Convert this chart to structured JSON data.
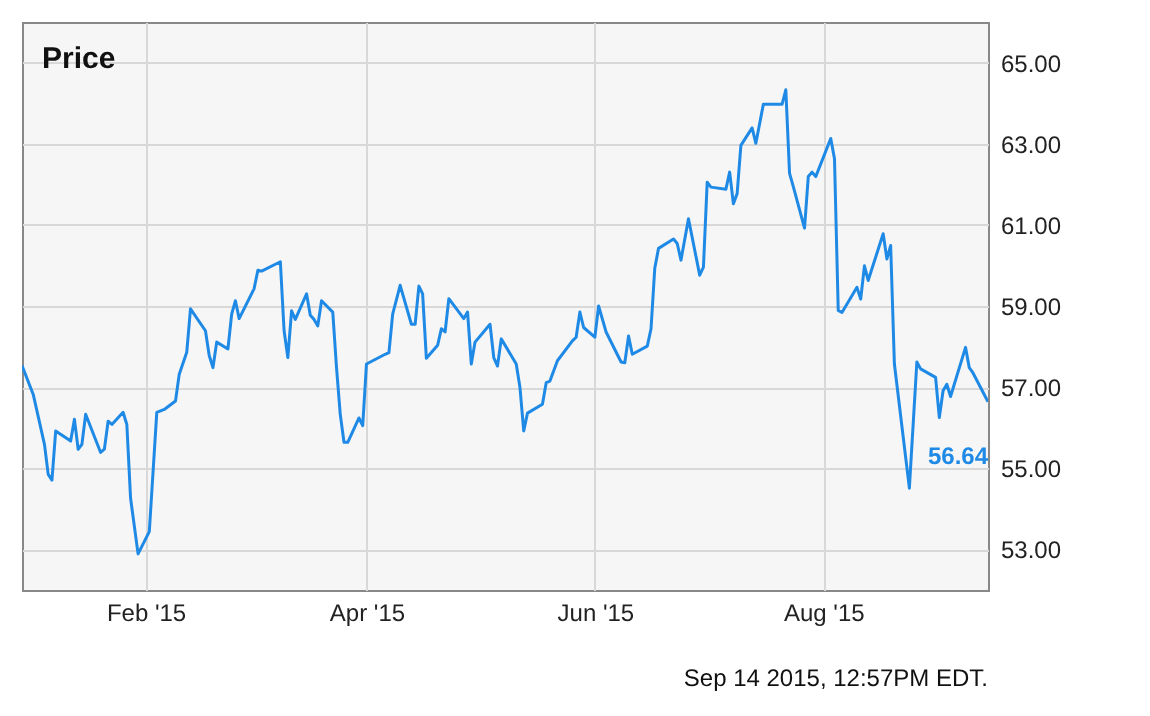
{
  "chart_data": {
    "type": "line",
    "title": "Price",
    "annotations": [
      "Sep 14 2015, 12:57PM EDT.",
      {
        "text": "56.64",
        "x": "2015-09-14",
        "y": 56.64
      }
    ],
    "x": [
      "2014-12-30",
      "2015-01-02",
      "2015-01-05",
      "2015-01-06",
      "2015-01-07",
      "2015-01-08",
      "2015-01-12",
      "2015-01-13",
      "2015-01-14",
      "2015-01-15",
      "2015-01-16",
      "2015-01-20",
      "2015-01-21",
      "2015-01-22",
      "2015-01-23",
      "2015-01-26",
      "2015-01-27",
      "2015-01-28",
      "2015-01-30",
      "2015-02-02",
      "2015-02-04",
      "2015-02-06",
      "2015-02-09",
      "2015-02-10",
      "2015-02-12",
      "2015-02-13",
      "2015-02-17",
      "2015-02-18",
      "2015-02-19",
      "2015-02-20",
      "2015-02-23",
      "2015-02-24",
      "2015-02-25",
      "2015-02-26",
      "2015-03-02",
      "2015-03-03",
      "2015-03-04",
      "2015-03-09",
      "2015-03-10",
      "2015-03-11",
      "2015-03-12",
      "2015-03-13",
      "2015-03-16",
      "2015-03-17",
      "2015-03-18",
      "2015-03-19",
      "2015-03-20",
      "2015-03-23",
      "2015-03-24",
      "2015-03-25",
      "2015-03-26",
      "2015-03-27",
      "2015-03-30",
      "2015-03-31",
      "2015-04-01",
      "2015-04-06",
      "2015-04-07",
      "2015-04-08",
      "2015-04-10",
      "2015-04-13",
      "2015-04-14",
      "2015-04-15",
      "2015-04-16",
      "2015-04-17",
      "2015-04-20",
      "2015-04-21",
      "2015-04-22",
      "2015-04-23",
      "2015-04-27",
      "2015-04-28",
      "2015-04-29",
      "2015-04-30",
      "2015-05-04",
      "2015-05-05",
      "2015-05-06",
      "2015-05-07",
      "2015-05-11",
      "2015-05-12",
      "2015-05-13",
      "2015-05-14",
      "2015-05-18",
      "2015-05-19",
      "2015-05-20",
      "2015-05-22",
      "2015-05-26",
      "2015-05-27",
      "2015-05-28",
      "2015-05-29",
      "2015-06-01",
      "2015-06-02",
      "2015-06-04",
      "2015-06-08",
      "2015-06-09",
      "2015-06-10",
      "2015-06-11",
      "2015-06-15",
      "2015-06-16",
      "2015-06-17",
      "2015-06-18",
      "2015-06-22",
      "2015-06-23",
      "2015-06-24",
      "2015-06-26",
      "2015-06-29",
      "2015-06-30",
      "2015-07-01",
      "2015-07-02",
      "2015-07-06",
      "2015-07-07",
      "2015-07-08",
      "2015-07-09",
      "2015-07-10",
      "2015-07-13",
      "2015-07-14",
      "2015-07-16",
      "2015-07-21",
      "2015-07-22",
      "2015-07-23",
      "2015-07-24",
      "2015-07-27",
      "2015-07-28",
      "2015-07-29",
      "2015-07-30",
      "2015-08-03",
      "2015-08-04",
      "2015-08-05",
      "2015-08-06",
      "2015-08-10",
      "2015-08-11",
      "2015-08-12",
      "2015-08-13",
      "2015-08-17",
      "2015-08-18",
      "2015-08-19",
      "2015-08-20",
      "2015-08-24",
      "2015-08-26",
      "2015-08-27",
      "2015-08-31",
      "2015-09-01",
      "2015-09-02",
      "2015-09-03",
      "2015-09-04",
      "2015-09-08",
      "2015-09-09",
      "2015-09-10",
      "2015-09-14"
    ],
    "series": [
      {
        "color": "#1f8ae6",
        "values": [
          57.53,
          56.82,
          55.59,
          54.85,
          54.71,
          55.92,
          55.67,
          56.21,
          55.47,
          55.59,
          56.33,
          55.39,
          55.47,
          56.16,
          56.08,
          56.38,
          56.08,
          54.26,
          52.89,
          53.44,
          56.38,
          56.45,
          56.66,
          57.32,
          57.86,
          58.93,
          58.39,
          57.78,
          57.48,
          58.11,
          57.94,
          58.8,
          59.13,
          58.69,
          59.43,
          59.88,
          59.86,
          60.09,
          58.39,
          57.73,
          58.88,
          58.67,
          59.3,
          58.77,
          58.67,
          58.51,
          59.13,
          58.85,
          57.48,
          56.33,
          55.64,
          55.64,
          56.24,
          56.05,
          57.57,
          57.81,
          57.85,
          58.8,
          59.51,
          58.55,
          58.55,
          59.49,
          59.3,
          57.71,
          58.03,
          58.44,
          58.36,
          59.18,
          58.69,
          58.85,
          57.57,
          58.11,
          58.55,
          57.73,
          57.52,
          58.19,
          57.57,
          56.99,
          55.92,
          56.36,
          56.58,
          57.11,
          57.15,
          57.65,
          58.14,
          58.23,
          58.85,
          58.47,
          58.23,
          59.0,
          58.36,
          57.62,
          57.6,
          58.26,
          57.81,
          58.01,
          58.44,
          59.93,
          60.42,
          60.65,
          60.54,
          60.13,
          61.15,
          59.76,
          59.96,
          62.05,
          61.93,
          61.88,
          62.3,
          61.52,
          61.77,
          62.96,
          63.39,
          63.01,
          63.97,
          63.97,
          64.33,
          62.27,
          61.94,
          60.92,
          62.19,
          62.3,
          62.19,
          63.13,
          62.63,
          58.89,
          58.84,
          59.46,
          59.17,
          59.99,
          59.63,
          60.78,
          60.16,
          60.49,
          57.57,
          54.51,
          57.62,
          57.45,
          57.24,
          56.25,
          56.91,
          57.07,
          56.77,
          57.98,
          57.48,
          57.35,
          56.64
        ]
      }
    ],
    "xlim": [
      "2014-12-30",
      "2015-09-14"
    ],
    "xticks": [
      {
        "value": "2015-02-01",
        "label": "Feb '15"
      },
      {
        "value": "2015-04-01",
        "label": "Apr '15"
      },
      {
        "value": "2015-06-01",
        "label": "Jun '15"
      },
      {
        "value": "2015-08-01",
        "label": "Aug '15"
      }
    ],
    "ylim": [
      52,
      66
    ],
    "yticks": [
      {
        "value": 53,
        "label": "53.00"
      },
      {
        "value": 55,
        "label": "55.00"
      },
      {
        "value": 57,
        "label": "57.00"
      },
      {
        "value": 59,
        "label": "59.00"
      },
      {
        "value": 61,
        "label": "61.00"
      },
      {
        "value": 63,
        "label": "63.00"
      },
      {
        "value": 65,
        "label": "65.00"
      }
    ],
    "grid": true
  }
}
